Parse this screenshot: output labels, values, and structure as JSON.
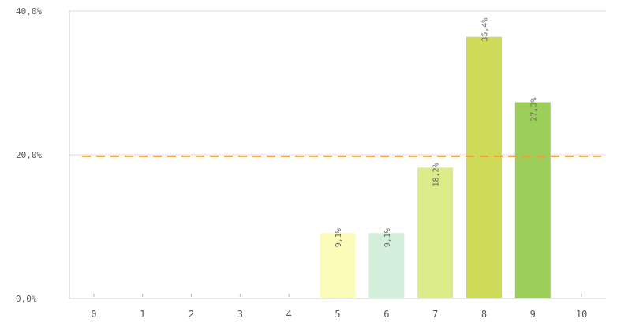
{
  "chart_data": {
    "type": "bar",
    "categories": [
      "0",
      "1",
      "2",
      "3",
      "4",
      "5",
      "6",
      "7",
      "8",
      "9",
      "10"
    ],
    "values": [
      0,
      0,
      0,
      0,
      0,
      9.1,
      9.1,
      18.2,
      36.4,
      27.3,
      0
    ],
    "data_labels": [
      "",
      "",
      "",
      "",
      "",
      "9,1%",
      "9,1%",
      "18,2%",
      "36,4%",
      "27,3%",
      ""
    ],
    "bar_colors": [
      "#e8e8e8",
      "#e8e8e8",
      "#e8e8e8",
      "#e8e8e8",
      "#e8e8e8",
      "#fafcb8",
      "#d4f0dc",
      "#dcec88",
      "#cddb58",
      "#9ccf5a",
      "#e8e8e8"
    ],
    "yticks": [
      {
        "value": 0,
        "label": "0,0%"
      },
      {
        "value": 20,
        "label": "20,0%"
      },
      {
        "value": 40,
        "label": "40,0%"
      }
    ],
    "ylim": [
      0,
      40
    ],
    "reference_line": {
      "value": 19.8,
      "color": "#f0a030",
      "style": "dashed"
    },
    "grid": true,
    "gridline_color": "#dddddd",
    "title": "",
    "xlabel": "",
    "ylabel": ""
  }
}
